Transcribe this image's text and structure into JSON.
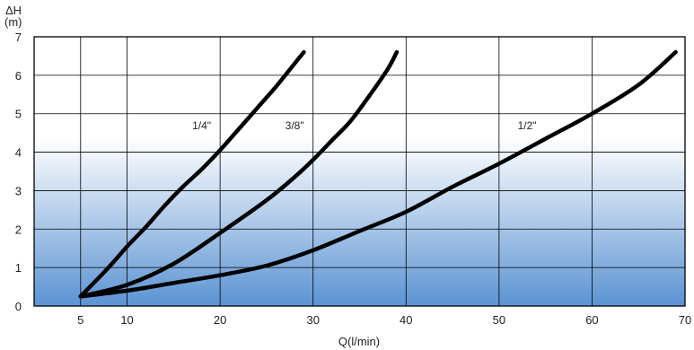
{
  "chart_data": {
    "type": "line",
    "xlabel": "Q(l/min)",
    "ylabel_top": "ΔH",
    "ylabel_bottom": "(m)",
    "xlim": [
      0,
      70
    ],
    "ylim": [
      0,
      7
    ],
    "xticks": [
      5,
      10,
      20,
      30,
      40,
      50,
      60,
      70
    ],
    "yticks": [
      0,
      1,
      2,
      3,
      4,
      5,
      6,
      7
    ],
    "x_gridlines": [
      5,
      10,
      20,
      30,
      40,
      50,
      60
    ],
    "y_gridlines": [
      1,
      2,
      3,
      4,
      5,
      6
    ],
    "grid": true,
    "background": "vertical gradient: white at top to blue at bottom",
    "colors": {
      "line": "#000000",
      "grid": "#000000",
      "gradient_top": "#ffffff",
      "gradient_bottom": "#5b93d3"
    },
    "series": [
      {
        "name": "1/4\"",
        "label_at": [
          17,
          4.6
        ],
        "x": [
          5,
          8,
          10,
          12,
          14,
          16,
          18,
          20,
          22,
          24,
          26,
          28,
          29
        ],
        "y": [
          0.25,
          1.0,
          1.55,
          2.05,
          2.6,
          3.1,
          3.55,
          4.05,
          4.6,
          5.15,
          5.7,
          6.3,
          6.6
        ]
      },
      {
        "name": "3/8\"",
        "label_at": [
          27,
          4.6
        ],
        "x": [
          5,
          10,
          15,
          20,
          25,
          28,
          30,
          32,
          34,
          36,
          38,
          39
        ],
        "y": [
          0.25,
          0.55,
          1.1,
          1.9,
          2.75,
          3.35,
          3.8,
          4.3,
          4.8,
          5.45,
          6.15,
          6.6
        ]
      },
      {
        "name": "1/2\"",
        "label_at": [
          52,
          4.6
        ],
        "x": [
          5,
          10,
          15,
          20,
          25,
          30,
          35,
          40,
          45,
          50,
          55,
          60,
          65,
          69
        ],
        "y": [
          0.25,
          0.4,
          0.6,
          0.8,
          1.05,
          1.45,
          1.95,
          2.45,
          3.1,
          3.7,
          4.35,
          5.0,
          5.75,
          6.6
        ]
      }
    ]
  }
}
